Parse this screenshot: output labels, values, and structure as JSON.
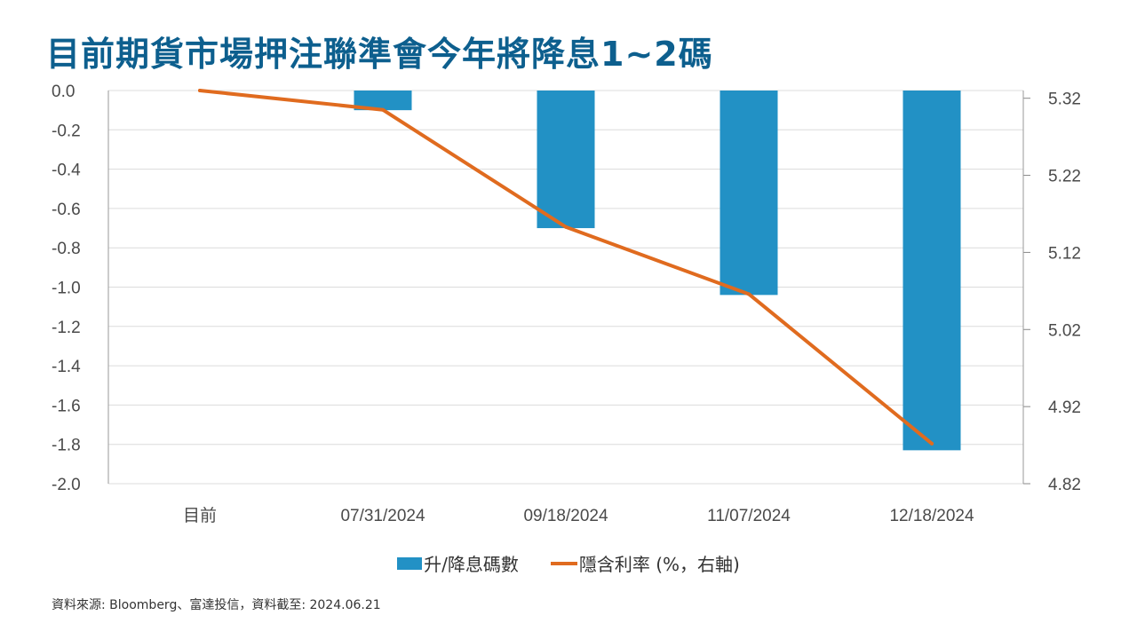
{
  "title": "目前期貨市場押注聯準會今年將降息1~2碼",
  "source": "資料來源: Bloomberg、富達投信，資料截至: 2024.06.21",
  "colors": {
    "bar": "#2291c5",
    "line": "#e06b1f",
    "title": "#0d5f8e"
  },
  "chart_data": {
    "type": "bar",
    "categories": [
      "目前",
      "07/31/2024",
      "09/18/2024",
      "11/07/2024",
      "12/18/2024"
    ],
    "series": [
      {
        "name": "升/降息碼數",
        "type": "bar",
        "axis": "left",
        "values": [
          0,
          -0.1,
          -0.7,
          -1.04,
          -1.83
        ]
      },
      {
        "name": "隱含利率 (%，右軸)",
        "type": "line",
        "axis": "right",
        "values": [
          5.33,
          5.305,
          5.153,
          5.066,
          4.872
        ]
      }
    ],
    "y_left": {
      "min": -2.0,
      "max": 0.0,
      "ticks": [
        "0.0",
        "-0.2",
        "-0.4",
        "-0.6",
        "-0.8",
        "-1.0",
        "-1.2",
        "-1.4",
        "-1.6",
        "-1.8",
        "-2.0"
      ]
    },
    "y_right": {
      "min": 4.82,
      "max": 5.33,
      "ticks": [
        "5.32",
        "5.22",
        "5.12",
        "5.02",
        "4.92",
        "4.82"
      ]
    },
    "grid": "horizontal",
    "legend": "bottom-center"
  }
}
